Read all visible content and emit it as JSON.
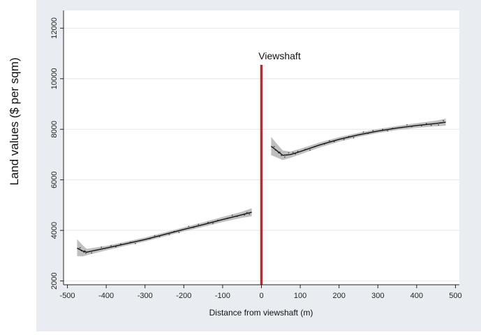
{
  "chart_data": {
    "type": "line",
    "xlabel": "Distance from viewshaft (m)",
    "ylabel": "Land values ($ per sqm)",
    "xlim": [
      -510,
      510
    ],
    "ylim": [
      1850,
      12700
    ],
    "x_ticks": [
      -500,
      -400,
      -300,
      -200,
      -100,
      0,
      100,
      200,
      300,
      400,
      500
    ],
    "y_ticks": [
      2000,
      4000,
      6000,
      8000,
      10000,
      12000
    ],
    "grid": true,
    "annotation": {
      "text": "Viewshaft",
      "x": 0,
      "y_top": 10550,
      "color": "#c0282d"
    },
    "colors": {
      "outer_background": "#e9edf2",
      "plot_background": "#ffffff",
      "fit_line": "#111111",
      "confidence_band": "#bfbfbf",
      "grid": "#e6e6e6",
      "points": "#444444"
    },
    "series": [
      {
        "side": "left",
        "x": [
          -475,
          -460,
          -450,
          -400,
          -350,
          -300,
          -250,
          -200,
          -150,
          -100,
          -50,
          -25
        ],
        "y": [
          3300,
          3180,
          3140,
          3300,
          3470,
          3640,
          3840,
          4040,
          4230,
          4430,
          4620,
          4720
        ],
        "band_lower": [
          2980,
          2970,
          3020,
          3210,
          3390,
          3560,
          3760,
          3960,
          4140,
          4330,
          4500,
          4560
        ],
        "band_upper": [
          3650,
          3400,
          3270,
          3390,
          3550,
          3720,
          3920,
          4120,
          4320,
          4530,
          4740,
          4880
        ]
      },
      {
        "side": "right",
        "x": [
          25,
          40,
          55,
          75,
          100,
          150,
          200,
          250,
          300,
          350,
          400,
          450,
          475
        ],
        "y": [
          7330,
          7150,
          6970,
          7000,
          7120,
          7380,
          7600,
          7780,
          7930,
          8050,
          8150,
          8230,
          8280
        ],
        "band_lower": [
          6980,
          6880,
          6780,
          6870,
          7010,
          7280,
          7510,
          7700,
          7850,
          7970,
          8060,
          8120,
          8140
        ],
        "band_upper": [
          7700,
          7420,
          7160,
          7120,
          7230,
          7480,
          7690,
          7860,
          8010,
          8130,
          8240,
          8340,
          8420
        ]
      }
    ]
  }
}
